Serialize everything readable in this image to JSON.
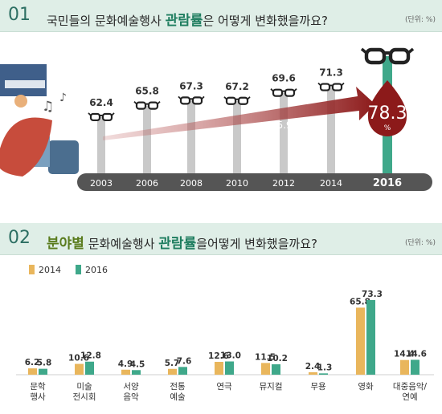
{
  "section1": {
    "number": "01",
    "title_pre": "국민들의 문화예술행사",
    "title_em": "관람률",
    "title_post": "은 어떻게 변화했을까요?",
    "unit": "(단위: %)"
  },
  "section2": {
    "number": "02",
    "title_em1": "분야별",
    "title_mid": "문화예술행사",
    "title_em2": "관람률",
    "title_post": "을어떻게 변화했을까요?",
    "unit": "(단위: %)"
  },
  "colors": {
    "header_bg": "#dfeee7",
    "accent_green": "#2d6f63",
    "arrow_red": "#8c1a1a",
    "bar_2014": "#e9b65c",
    "bar_2016": "#3fa88a"
  },
  "chart_data": [
    {
      "type": "bar",
      "categories": [
        "2003",
        "2006",
        "2008",
        "2010",
        "2012",
        "2014",
        "2016"
      ],
      "values": [
        62.4,
        65.8,
        67.3,
        67.2,
        69.6,
        71.3,
        78.3
      ],
      "highlight": {
        "category": "2016",
        "value": "78.3",
        "unit": "%"
      },
      "annotation": "15.9%",
      "icon": "glasses-icon"
    },
    {
      "type": "bar",
      "categories": [
        "문학\n행사",
        "미술\n전시회",
        "서양\n음악",
        "전통\n예술",
        "연극",
        "뮤지컬",
        "무용",
        "영화",
        "대중음악/\n연예"
      ],
      "series": [
        {
          "name": "2014",
          "values": [
            6.2,
            10.6,
            4.9,
            5.7,
            12.6,
            11.5,
            2.4,
            65.8,
            14.4
          ]
        },
        {
          "name": "2016",
          "values": [
            5.8,
            12.8,
            4.5,
            7.6,
            13.0,
            10.2,
            1.3,
            73.3,
            14.6
          ]
        }
      ]
    }
  ]
}
